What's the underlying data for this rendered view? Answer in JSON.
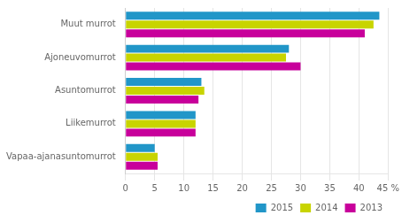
{
  "chart_data": {
    "type": "bar",
    "orientation": "horizontal",
    "categories": [
      "Muut murrot",
      "Ajoneuvomurrot",
      "Asuntomurrot",
      "Liikemurrot",
      "Vapaa-ajanasuntomurrot"
    ],
    "series": [
      {
        "name": "2015",
        "color": "#2196c8",
        "values": [
          43.5,
          28.0,
          13.0,
          12.0,
          5.0
        ]
      },
      {
        "name": "2014",
        "color": "#c8d400",
        "values": [
          42.5,
          27.5,
          13.5,
          12.0,
          5.5
        ]
      },
      {
        "name": "2013",
        "color": "#c8009b",
        "values": [
          41.0,
          30.0,
          12.5,
          12.0,
          5.5
        ]
      }
    ],
    "xlim": [
      0,
      45
    ],
    "xticks": [
      0,
      5,
      10,
      15,
      20,
      25,
      30,
      35,
      40,
      {
        "value": 45,
        "label": "45 %"
      }
    ],
    "grid": true,
    "legend": "lower right"
  }
}
